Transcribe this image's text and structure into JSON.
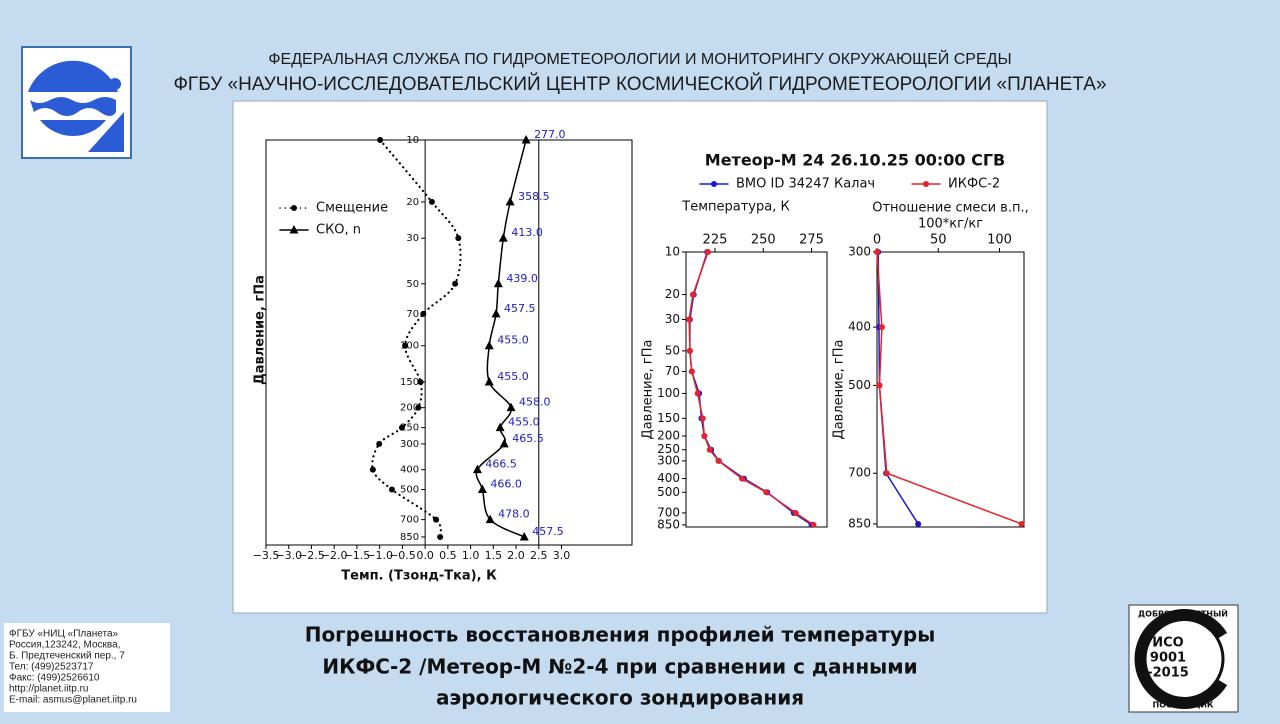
{
  "header": {
    "line1": "ФЕДЕРАЛЬНАЯ СЛУЖБА ПО ГИДРОМЕТЕОРОЛОГИИ И МОНИТОРИНГУ ОКРУЖАЮЩЕЙ СРЕДЫ",
    "line2": "ФГБУ «НАУЧНО-ИССЛЕДОВАТЕЛЬСКИЙ ЦЕНТР КОСМИЧЕСКОЙ ГИДРОМЕТЕОРОЛОГИИ «ПЛАНЕТА»"
  },
  "contact": [
    "ФГБУ «НИЦ «Планета»",
    "Россия,123242, Москва,",
    "Б. Предтеченский пер., 7",
    "Тел:   (499)2523717",
    "Факс: (499)2526610",
    "http://planet.iitp.ru",
    "E-mail: asmus@planet.iitp.ru"
  ],
  "caption": [
    "Погрешность восстановления профилей температуры",
    "ИКФС-2 /Метеор-М №2-4 при сравнении с данными",
    "аэрологического зондирования"
  ],
  "certificate": {
    "top": "ДОБРОСОВЕСТНЫЙ",
    "line1": "ИСО",
    "line2": "9001",
    "line3": "-2015",
    "bottom": "ПОСТАВЩИК"
  },
  "chart_data": [
    {
      "type": "line",
      "x_label": "Темп. (Тзонд-Тка), К",
      "y_label": "Давление, гПа",
      "y_scale": "log",
      "y_inverted": true,
      "smooth": true,
      "spine_at_zero": true,
      "legend": "upper left",
      "xlim": [
        -3.5,
        4.55
      ],
      "ylim": [
        10,
        930
      ],
      "xticks": [
        {
          "value": -3.5,
          "label": "−3.5"
        },
        {
          "value": -3.0,
          "label": "−3.0"
        },
        {
          "value": -2.5,
          "label": "−2.5"
        },
        {
          "value": -2.0,
          "label": "−2.0"
        },
        {
          "value": -1.5,
          "label": "−1.5"
        },
        {
          "value": -1.0,
          "label": "−1.0"
        },
        {
          "value": -0.5,
          "label": "−0.5"
        },
        {
          "value": 0,
          "label": "0.0"
        },
        {
          "value": 0.5,
          "label": "0.5"
        },
        {
          "value": 1.0,
          "label": "1.0"
        },
        {
          "value": 1.5,
          "label": "1.5"
        },
        {
          "value": 2.0,
          "label": "2.0"
        },
        {
          "value": 2.5,
          "label": "2.5"
        },
        {
          "value": 3.0,
          "label": "3.0"
        }
      ],
      "yticks": [
        10,
        20,
        30,
        50,
        70,
        100,
        150,
        200,
        250,
        300,
        400,
        500,
        700,
        850
      ],
      "y": [
        10,
        20,
        30,
        50,
        70,
        100,
        150,
        200,
        250,
        300,
        400,
        500,
        700,
        850
      ],
      "vlines": [
        0,
        2.5
      ],
      "series": [
        {
          "name": "Смещение",
          "color": "#000000",
          "style": "dotted",
          "marker": "circle",
          "values": [
            -0.99,
            0.15,
            0.73,
            0.66,
            -0.04,
            -0.44,
            -0.1,
            -0.15,
            -0.51,
            -1.01,
            -1.15,
            -0.73,
            0.24,
            0.33
          ]
        },
        {
          "name": "СКО, n",
          "color": "#000000",
          "style": "solid",
          "marker": "triangle",
          "values": [
            2.22,
            1.87,
            1.72,
            1.61,
            1.56,
            1.41,
            1.41,
            1.89,
            1.65,
            1.74,
            1.15,
            1.26,
            1.43,
            2.18
          ],
          "point_labels": [
            "277.0",
            "358.5",
            "413.0",
            "439.0",
            "457.5",
            "455.0",
            "455.0",
            "458.0",
            "455.0",
            "465.5",
            "466.5",
            "466.0",
            "478.0",
            "457.5"
          ],
          "point_label_color": "#2020c8"
        }
      ]
    },
    {
      "type": "line",
      "title": "Метеор-М 24 26.10.25 00:00 СГВ",
      "x_label": "Температура, К",
      "y_label": "Давление, гПа",
      "y_scale": "log",
      "y_inverted": true,
      "x_axis": "top",
      "legend": "upper center",
      "xlim": [
        210,
        283
      ],
      "ylim": [
        10,
        880
      ],
      "xticks": [
        225,
        250,
        275
      ],
      "yticks": [
        10,
        20,
        30,
        50,
        70,
        100,
        150,
        200,
        250,
        300,
        400,
        500,
        700,
        850
      ],
      "y": [
        10,
        20,
        30,
        50,
        70,
        100,
        150,
        200,
        250,
        300,
        400,
        500,
        700,
        850
      ],
      "series": [
        {
          "name": "ВМО ID 34247 Калач",
          "color": "#1a1acc",
          "style": "solid",
          "marker": "circle",
          "values": [
            221,
            214,
            212,
            212,
            213,
            216.8,
            218,
            219.5,
            223,
            227,
            240,
            252,
            265.8,
            275
          ]
        },
        {
          "name": "ИКФС-2",
          "color": "#e8232a",
          "style": "solid",
          "marker": "circle",
          "values": [
            221.4,
            213.6,
            211.6,
            212,
            213,
            216,
            218.7,
            219.5,
            222.3,
            226.8,
            239,
            251.5,
            266.8,
            276
          ]
        }
      ]
    },
    {
      "type": "line",
      "x_label": [
        "Отношение смеси в.п.,",
        "100*кг/кг"
      ],
      "y_label": "Давление, гПа",
      "y_scale": "log",
      "y_inverted": true,
      "x_axis": "top",
      "xlim": [
        0,
        120
      ],
      "ylim": [
        300,
        860
      ],
      "xticks": [
        0,
        50,
        100
      ],
      "yticks": [
        300,
        400,
        500,
        700,
        850
      ],
      "y": [
        300,
        400,
        500,
        700,
        850
      ],
      "series": [
        {
          "color": "#1a1acc",
          "style": "solid",
          "marker": "circle",
          "values": [
            1,
            1.6,
            2,
            7.4,
            33.6
          ]
        },
        {
          "color": "#e8232a",
          "style": "solid",
          "marker": "circle",
          "values": [
            0,
            4,
            2,
            8,
            118
          ]
        }
      ]
    }
  ]
}
